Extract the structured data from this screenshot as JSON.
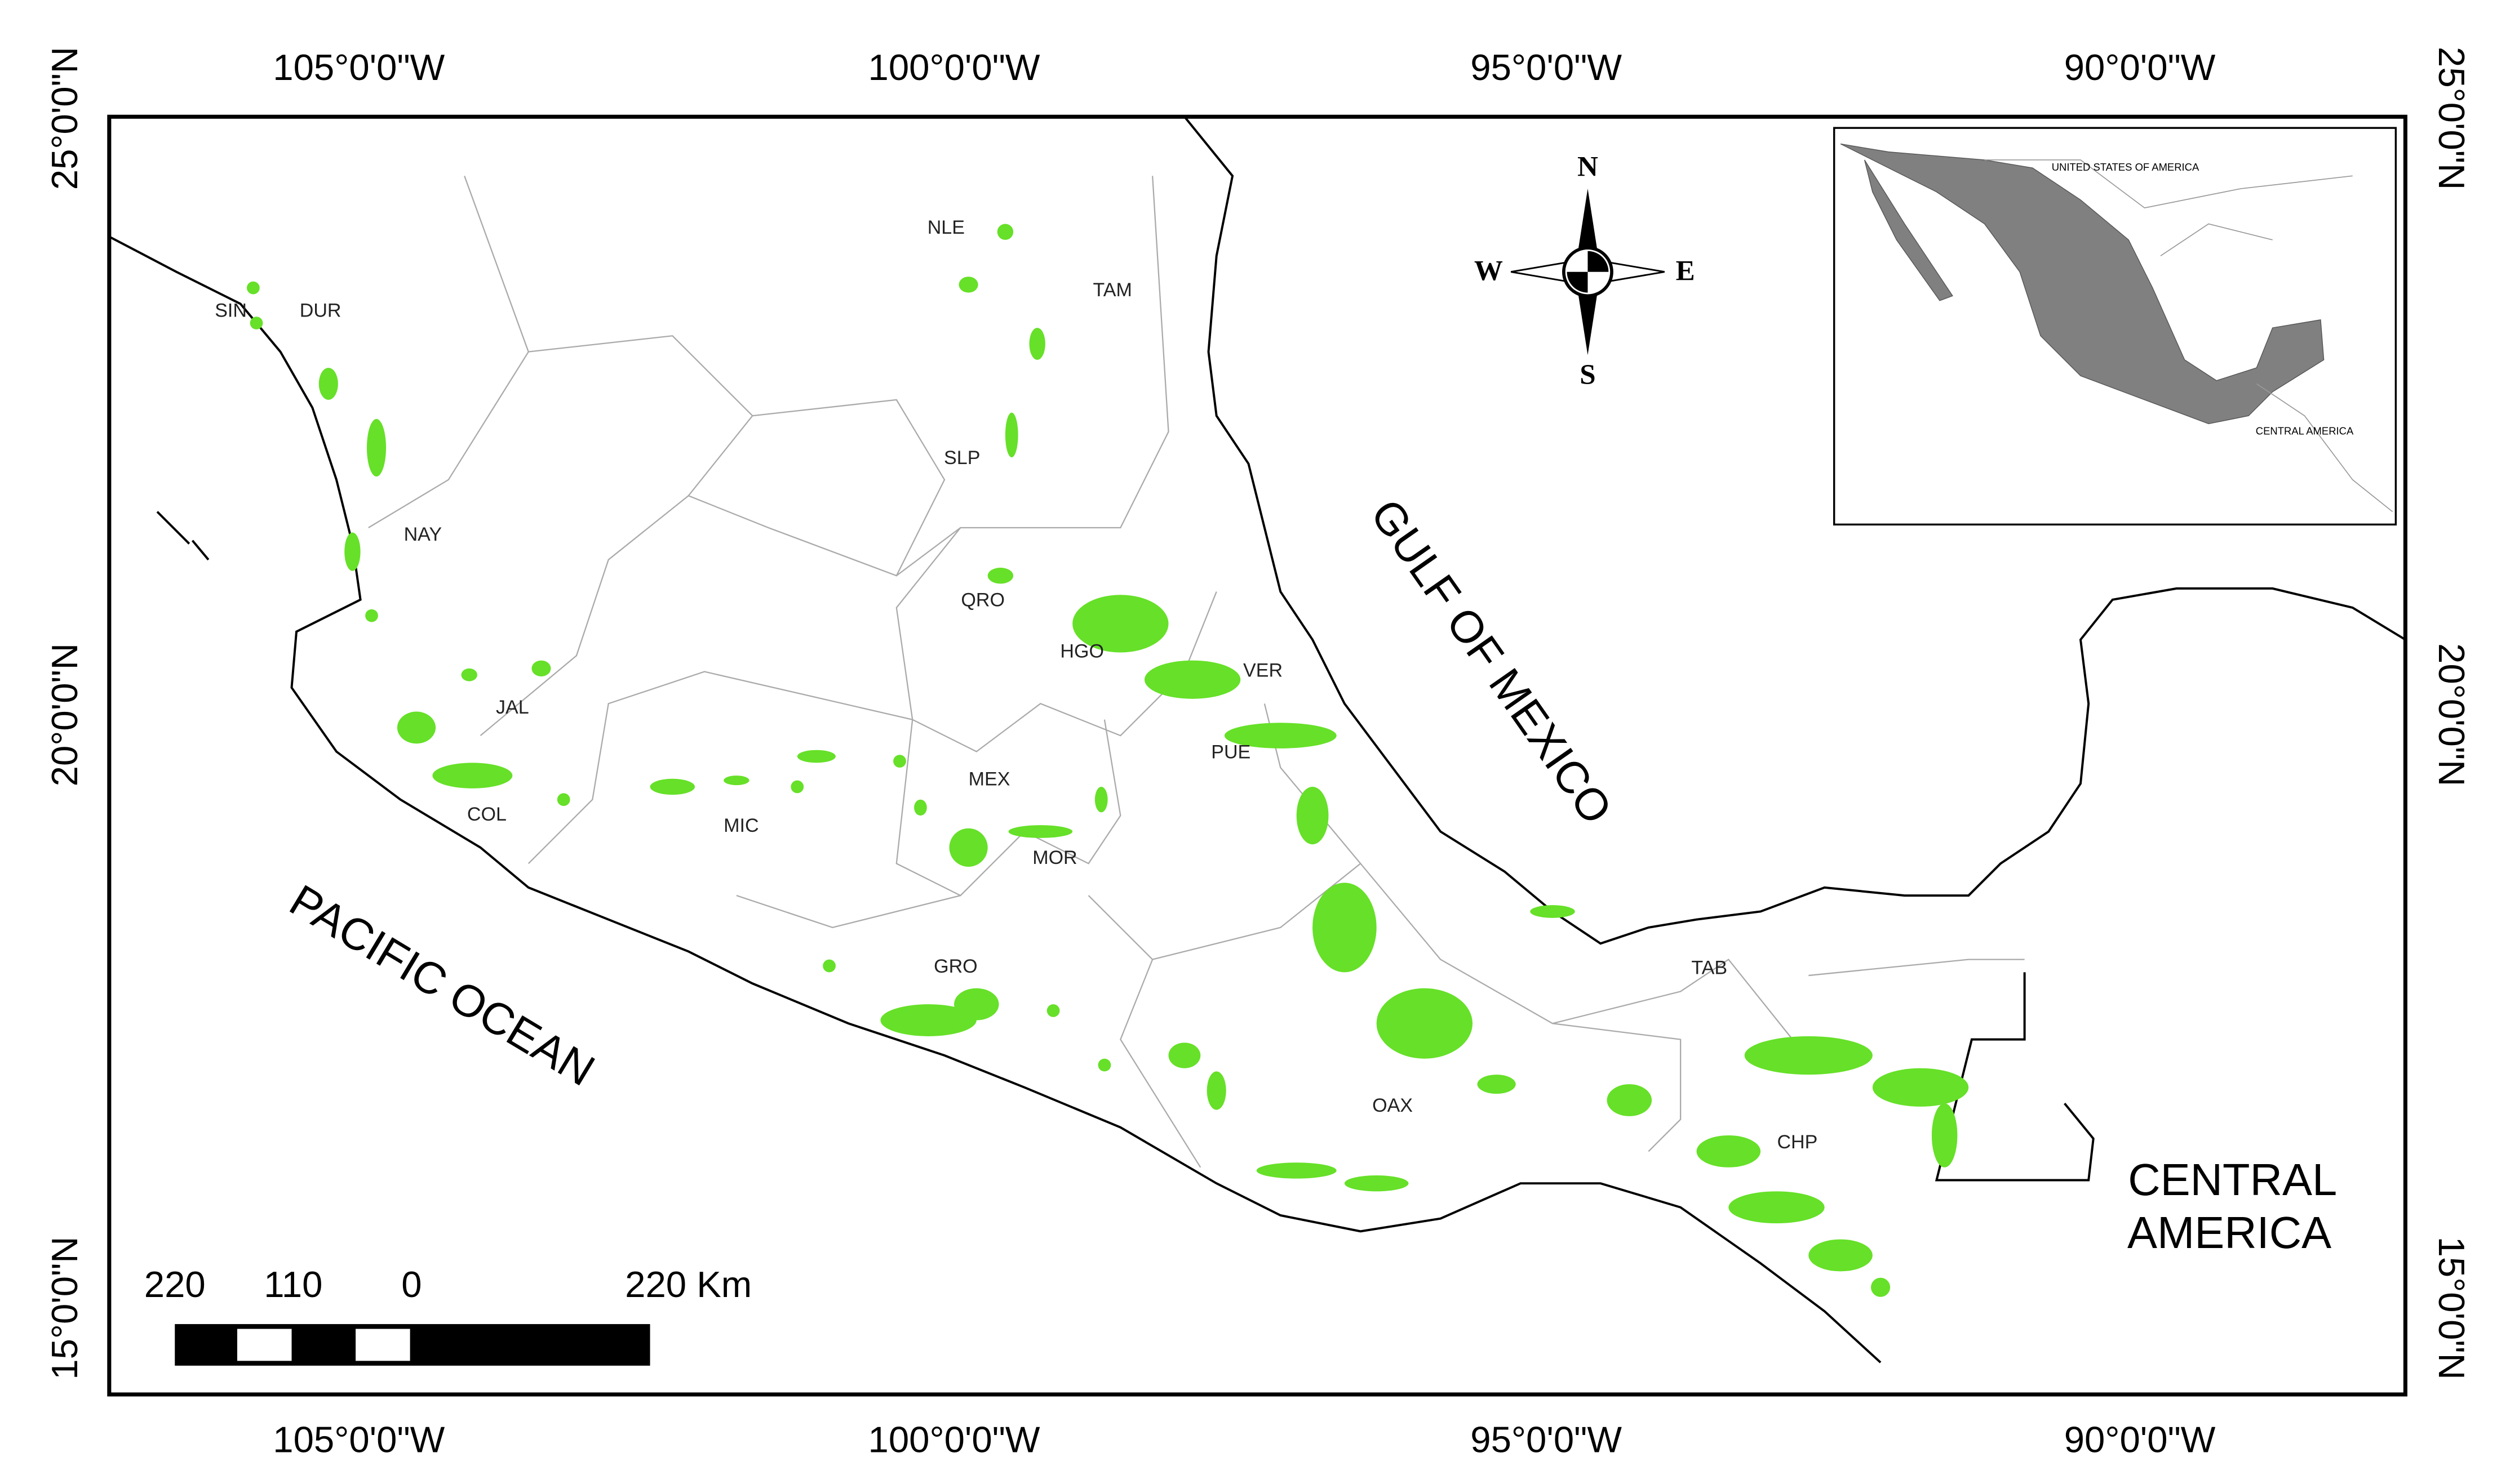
{
  "graticule": {
    "longitudes": [
      "105°0'0\"W",
      "100°0'0\"W",
      "95°0'0\"W",
      "90°0'0\"W"
    ],
    "latitudes": [
      "25°0'0\"N",
      "20°0'0\"N",
      "15°0'0\"N"
    ]
  },
  "states": [
    "SIN",
    "DUR",
    "NLE",
    "TAM",
    "SLP",
    "NAY",
    "QRO",
    "HGO",
    "VER",
    "JAL",
    "PUE",
    "MEX",
    "COL",
    "MIC",
    "MOR",
    "GRO",
    "TAB",
    "OAX",
    "CHP"
  ],
  "water": {
    "gulf": "GULF OF MEXICO",
    "pacific": "PACIFIC OCEAN",
    "central_america": [
      "CENTRAL",
      "AMERICA"
    ]
  },
  "compass": {
    "north": "N",
    "south": "S",
    "east": "E",
    "west": "W"
  },
  "scale_bar": {
    "labels": [
      "220",
      "110",
      "0",
      "220 Km"
    ]
  },
  "inset": {
    "usa": "UNITED STATES OF AMERICA",
    "central_america": "CENTRAL AMERICA"
  }
}
